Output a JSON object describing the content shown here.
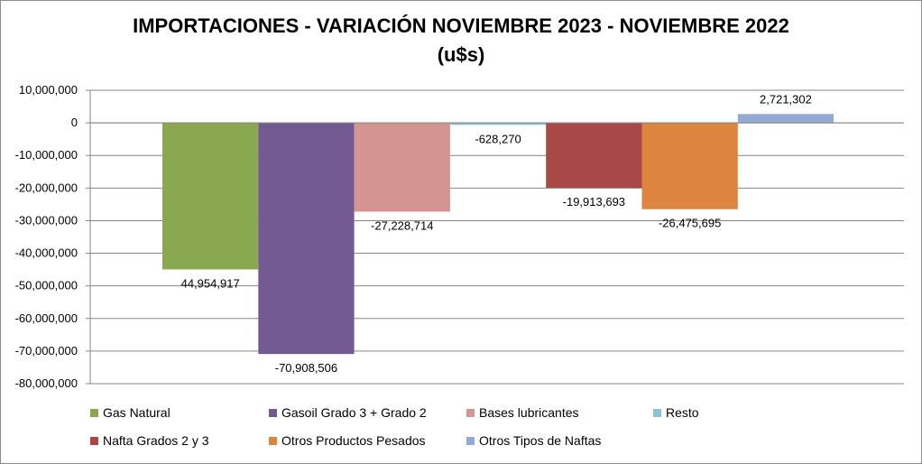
{
  "chart_data": {
    "type": "bar",
    "title_line1": "IMPORTACIONES - VARIACIÓN NOVIEMBRE 2023 - NOVIEMBRE 2022",
    "title_line2": "(u$s)",
    "ylim": [
      -80000000,
      10000000
    ],
    "ytick_step": 10000000,
    "yticks": [
      "10,000,000",
      "0",
      "-10,000,000",
      "-20,000,000",
      "-30,000,000",
      "-40,000,000",
      "-50,000,000",
      "-60,000,000",
      "-70,000,000",
      "-80,000,000"
    ],
    "grid": true,
    "legend_position": "bottom",
    "series": [
      {
        "name": "Gas Natural",
        "value": -44954917,
        "label": "44,954,917",
        "color": "#8aa84f",
        "label_color": "#ff0000"
      },
      {
        "name": "Gasoil Grado 3 + Grado 2",
        "value": -70908506,
        "label": "-70,908,506",
        "color": "#735a93",
        "label_color": "#000000"
      },
      {
        "name": "Bases lubricantes",
        "value": -27228714,
        "label": "-27,228,714",
        "color": "#d49492",
        "label_color": "#000000"
      },
      {
        "name": "Resto",
        "value": -628270,
        "label": "-628,270",
        "color": "#8fc3d4",
        "label_color": "#000000"
      },
      {
        "name": "Nafta Grados 2 y 3",
        "value": -19913693,
        "label": "-19,913,693",
        "color": "#a84847",
        "label_color": "#000000"
      },
      {
        "name": "Otros Productos Pesados",
        "value": -26475695,
        "label": "-26,475,695",
        "color": "#dd843e",
        "label_color": "#000000"
      },
      {
        "name": "Otros Tipos de Naftas",
        "value": 2721302,
        "label": "2,721,302",
        "color": "#94aad6",
        "label_color": "#000000"
      }
    ]
  }
}
